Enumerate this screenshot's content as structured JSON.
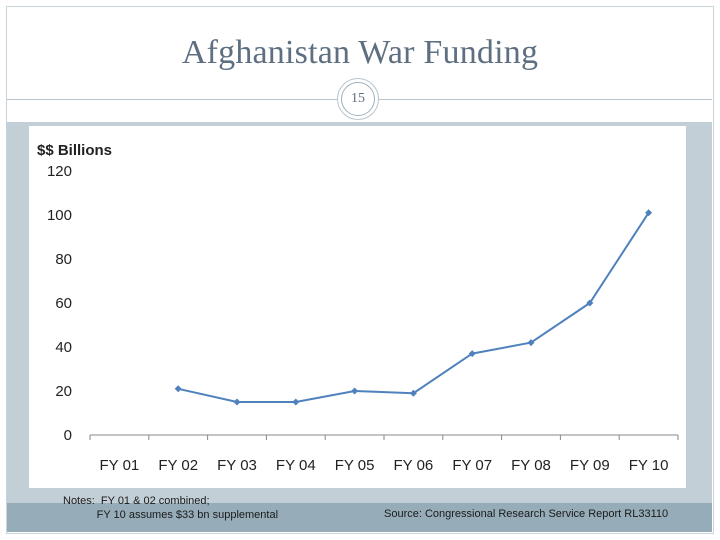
{
  "slide": {
    "title": "Afghanistan War Funding",
    "page_number": "15",
    "notes_line1": "Notes:  FY 01 & 02 combined;",
    "notes_line2": "           FY 10 assumes $33 bn supplemental",
    "source": "Source: Congressional Research Service Report RL33110"
  },
  "colors": {
    "title_text": "#5d6f80",
    "content_background": "#c3cfd6",
    "footer_bar": "#96adb9",
    "series_line": "#4f81bd"
  },
  "chart_data": {
    "type": "line",
    "title": "",
    "ylabel": "$$ Billions",
    "xlabel": "",
    "categories": [
      "FY 01",
      "FY 02",
      "FY 03",
      "FY 04",
      "FY 05",
      "FY 06",
      "FY 07",
      "FY 08",
      "FY 09",
      "FY 10"
    ],
    "yticks": [
      0,
      20,
      40,
      60,
      80,
      100,
      120
    ],
    "ylim": [
      0,
      120
    ],
    "grid": false,
    "legend": "none",
    "series": [
      {
        "values": [
          null,
          21,
          15,
          15,
          20,
          19,
          37,
          42,
          60,
          101
        ]
      }
    ]
  }
}
